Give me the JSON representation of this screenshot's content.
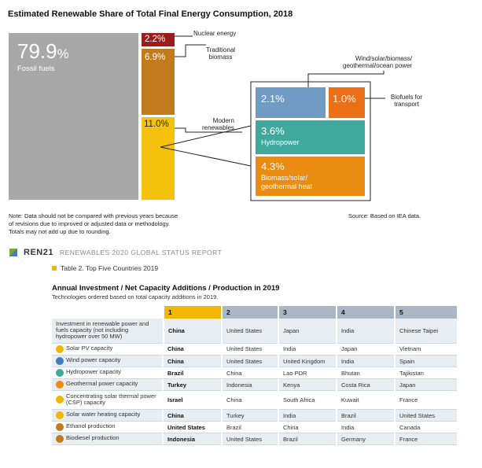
{
  "chart_data": {
    "type": "treemap",
    "title": "Estimated Renewable Share of Total Final Energy Consumption, 2018",
    "segments": [
      {
        "name": "Fossil fuels",
        "value": 79.9,
        "label": "79.9%",
        "color": "#a8a8a8"
      },
      {
        "name": "Nuclear energy",
        "value": 2.2,
        "label": "2.2%",
        "color": "#9b1c1c"
      },
      {
        "name": "Traditional biomass",
        "value": 6.9,
        "label": "6.9%",
        "color": "#c27a1f"
      },
      {
        "name": "Modern renewables",
        "value": 11.0,
        "label": "11.0%",
        "color": "#f4c20d",
        "children": [
          {
            "name": "Wind/solar/biomass/ geothermal/ocean power",
            "value": 2.1,
            "label": "2.1%",
            "color": "#6f9bc4"
          },
          {
            "name": "Biofuels for transport",
            "value": 1.0,
            "label": "1.0%",
            "color": "#ea6f16"
          },
          {
            "name": "Hydropower",
            "value": 3.6,
            "label": "3.6%",
            "color": "#3fa99d"
          },
          {
            "name": "Biomass/solar/ geothermal heat",
            "value": 4.3,
            "label": "4.3%",
            "color": "#ea8c12"
          }
        ]
      }
    ]
  },
  "labels": {
    "fossil_pct": "79.9",
    "fossil_pct_sign": "%",
    "fossil_name": "Fossil fuels",
    "nuclear_pct": "2.2%",
    "trad_pct": "6.9%",
    "modern_pct": "11.0%",
    "wind_pct": "2.1%",
    "biofuel_pct": "1.0%",
    "hydro_pct": "3.6%",
    "hydro_name": "Hydropower",
    "heat_pct": "4.3%",
    "heat_name_1": "Biomass/solar/",
    "heat_name_2": "geothermal heat",
    "c_nuclear": "Nuclear energy",
    "c_trad_1": "Traditional",
    "c_trad_2": "biomass",
    "c_modern_1": "Modern",
    "c_modern_2": "renewables",
    "c_wind_1": "Wind/solar/biomass/",
    "c_wind_2": "geothermal/ocean power",
    "c_biofuel_1": "Biofuels for",
    "c_biofuel_2": "transport"
  },
  "note": {
    "line1": "Note: Data should not be compared with previous years because",
    "line2": "of revisions due to improved or adjusted data or methodology.",
    "line3": "Totals may not add up due to rounding.",
    "source": "Source: Based on IEA data."
  },
  "report": {
    "logo": "REN21",
    "title": "RENEWABLES 2020 GLOBAL STATUS REPORT"
  },
  "table": {
    "caption": "Table 2.  Top Five Countries 2019",
    "title": "Annual Investment / Net Capacity Additions / Production in 2019",
    "subtitle": "Technologies ordered based on total capacity additions in 2019.",
    "headers": [
      "1",
      "2",
      "3",
      "4",
      "5"
    ],
    "rows": [
      {
        "tech": "Investment in renewable power and fuels capacity (not including hydropower over 50 MW)",
        "icon": "",
        "icon_color": "",
        "c": [
          "China",
          "United States",
          "Japan",
          "India",
          "Chinese Taipei"
        ]
      },
      {
        "tech": "Solar PV capacity",
        "icon": "sun-icon",
        "icon_color": "#f2b705",
        "c": [
          "China",
          "United States",
          "India",
          "Japan",
          "Vietnam"
        ]
      },
      {
        "tech": "Wind power capacity",
        "icon": "wind-turbine-icon",
        "icon_color": "#3f7cc1",
        "c": [
          "China",
          "United States",
          "United Kingdom",
          "India",
          "Spain"
        ]
      },
      {
        "tech": "Hydropower capacity",
        "icon": "water-drop-icon",
        "icon_color": "#3fa99d",
        "c": [
          "Brazil",
          "China",
          "Lao PDR",
          "Bhutan",
          "Tajikistan"
        ]
      },
      {
        "tech": "Geothermal power capacity",
        "icon": "geothermal-icon",
        "icon_color": "#ea8c12",
        "c": [
          "Turkey",
          "Indonesia",
          "Kenya",
          "Costa Rica",
          "Japan"
        ]
      },
      {
        "tech": "Concentrating solar thermal power (CSP) capacity",
        "icon": "csp-sun-icon",
        "icon_color": "#f2b705",
        "c": [
          "Israel",
          "China",
          "South Africa",
          "Kuwait",
          "France"
        ]
      },
      {
        "tech": "Solar water heating capacity",
        "icon": "solar-heat-icon",
        "icon_color": "#f2b705",
        "c": [
          "China",
          "Turkey",
          "India",
          "Brazil",
          "United States"
        ]
      },
      {
        "tech": "Ethanol production",
        "icon": "ethanol-icon",
        "icon_color": "#c27a1f",
        "c": [
          "United States",
          "Brazil",
          "China",
          "India",
          "Canada"
        ]
      },
      {
        "tech": "Biodiesel production",
        "icon": "biodiesel-icon",
        "icon_color": "#c27a1f",
        "c": [
          "Indonesia",
          "United States",
          "Brazil",
          "Germany",
          "France"
        ]
      }
    ]
  }
}
